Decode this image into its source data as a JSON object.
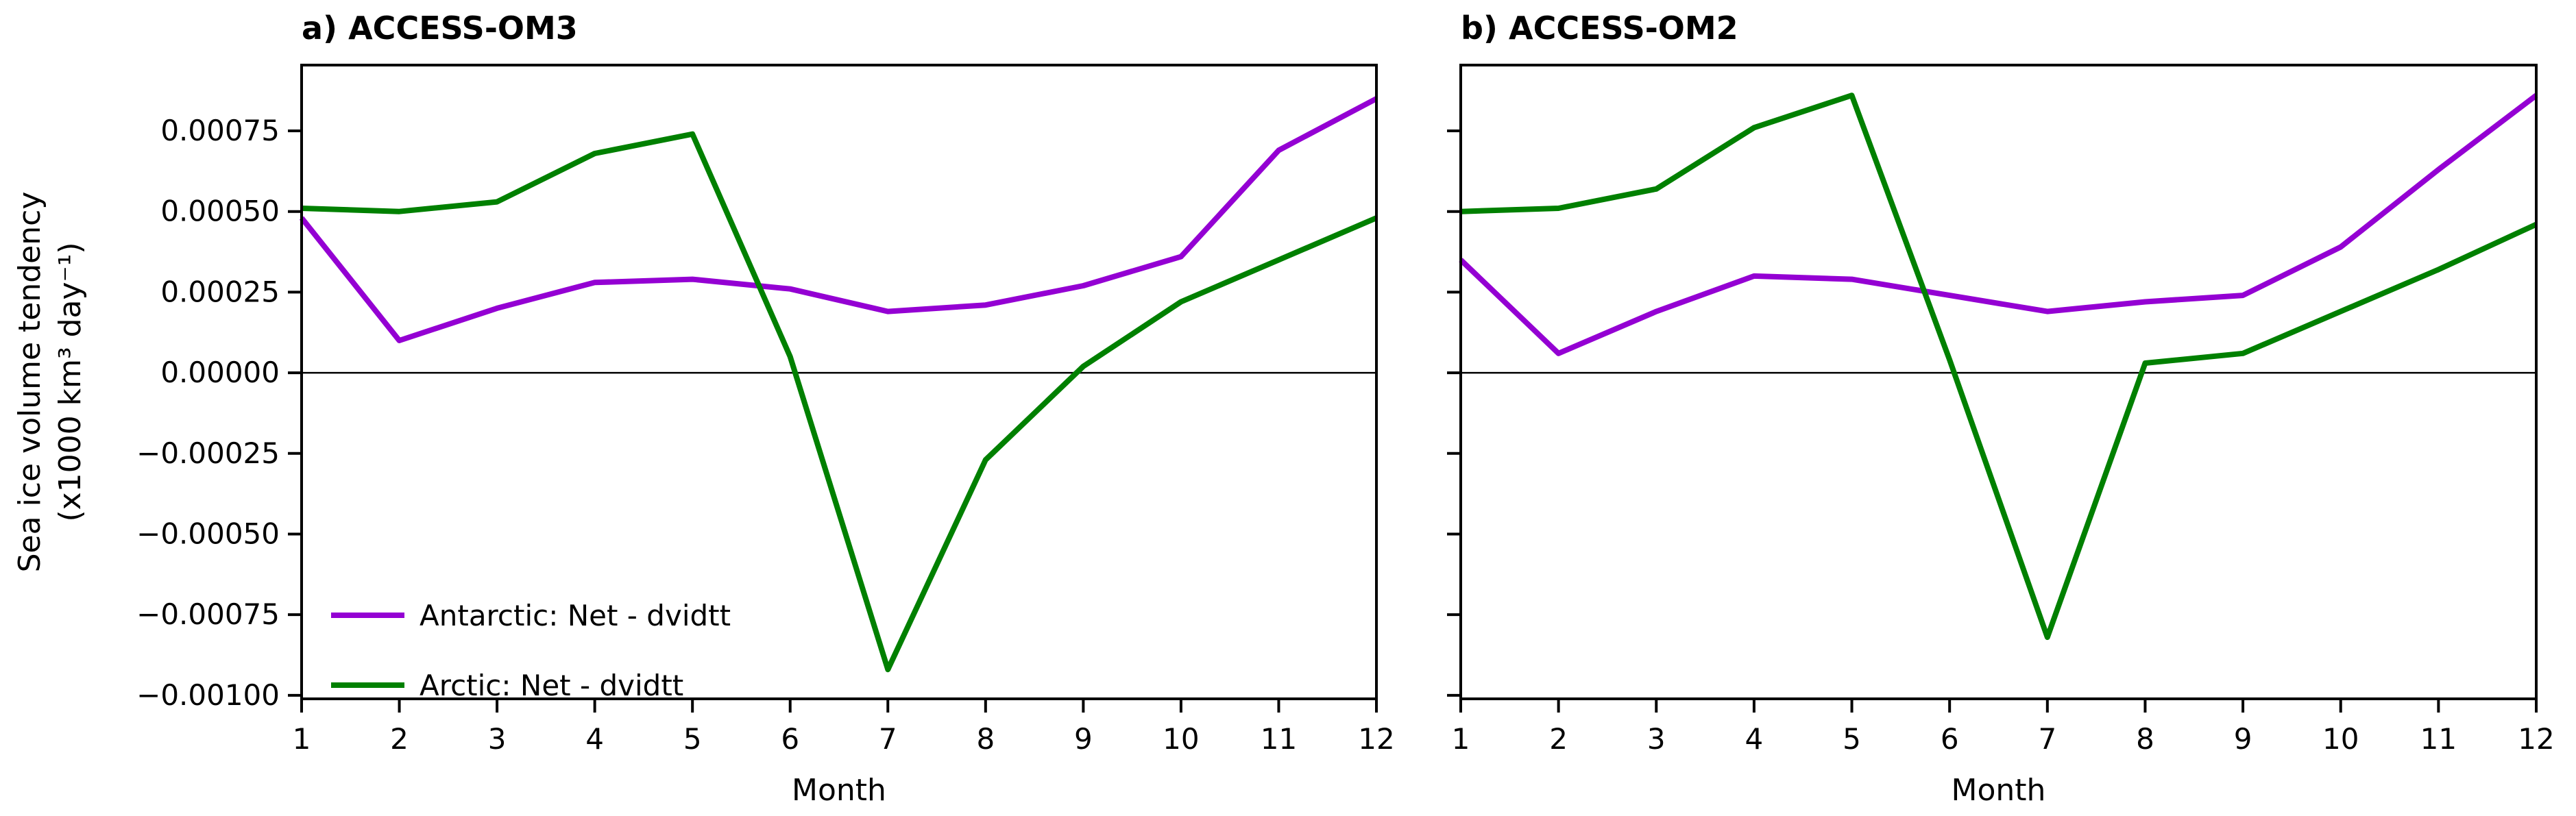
{
  "figure": {
    "ylabel_lines": [
      "Sea ice volume tendency",
      "(x1000 km³ day⁻¹)"
    ],
    "xlabel": "Month",
    "background_color": "#ffffff",
    "axis_color": "#000000",
    "antarctic_color": "#9400d3",
    "arctic_color": "#008000"
  },
  "chart_data": [
    {
      "id": "panel-a",
      "type": "line",
      "title": "a) ACCESS-OM3",
      "xlabel": "Month",
      "x": [
        1,
        2,
        3,
        4,
        5,
        6,
        7,
        8,
        9,
        10,
        11,
        12
      ],
      "xlim": [
        1,
        12
      ],
      "ylim": [
        -0.001011,
        0.000954
      ],
      "yticks": [
        0.00075,
        0.0005,
        0.00025,
        0,
        -0.00025,
        -0.0005,
        -0.00075,
        -0.001
      ],
      "ytick_labels": [
        "0.00075",
        "0.00050",
        "0.00025",
        "0.00000",
        "−0.00025",
        "−0.00050",
        "−0.00075",
        "−0.00100"
      ],
      "show_ytick_labels": true,
      "zero_line": true,
      "grid": false,
      "legend": {
        "position": "lower-left",
        "entries": [
          "Antarctic: Net - dvidtt",
          "Arctic: Net - dvidtt"
        ]
      },
      "series": [
        {
          "name": "Antarctic: Net - dvidtt",
          "color": "#9400d3",
          "values": [
            0.00048,
            0.0001,
            0.0002,
            0.00028,
            0.00029,
            0.00026,
            0.00019,
            0.00021,
            0.00027,
            0.00036,
            0.00069,
            0.00085
          ]
        },
        {
          "name": "Arctic: Net - dvidtt",
          "color": "#008000",
          "values": [
            0.00051,
            0.0005,
            0.00053,
            0.00068,
            0.00074,
            5e-05,
            -0.00092,
            -0.00027,
            2e-05,
            0.00022,
            0.00035,
            0.00048
          ]
        }
      ]
    },
    {
      "id": "panel-b",
      "type": "line",
      "title": "b) ACCESS-OM2",
      "xlabel": "Month",
      "x": [
        1,
        2,
        3,
        4,
        5,
        6,
        7,
        8,
        9,
        10,
        11,
        12
      ],
      "xlim": [
        1,
        12
      ],
      "ylim": [
        -0.001011,
        0.000954
      ],
      "yticks": [
        0.00075,
        0.0005,
        0.00025,
        0,
        -0.00025,
        -0.0005,
        -0.00075,
        -0.001
      ],
      "ytick_labels": [
        "0.00075",
        "0.00050",
        "0.00025",
        "0.00000",
        "−0.00025",
        "−0.00050",
        "−0.00075",
        "−0.00100"
      ],
      "show_ytick_labels": false,
      "zero_line": true,
      "grid": false,
      "legend": null,
      "series": [
        {
          "name": "Antarctic: Net - dvidtt",
          "color": "#9400d3",
          "values": [
            0.00035,
            6e-05,
            0.00019,
            0.0003,
            0.00029,
            0.00024,
            0.00019,
            0.00022,
            0.00024,
            0.00039,
            0.00063,
            0.00086
          ]
        },
        {
          "name": "Arctic: Net - dvidtt",
          "color": "#008000",
          "values": [
            0.0005,
            0.00051,
            0.00057,
            0.00076,
            0.00086,
            4e-05,
            -0.00082,
            3e-05,
            6e-05,
            0.00019,
            0.00032,
            0.00046
          ]
        }
      ]
    }
  ]
}
